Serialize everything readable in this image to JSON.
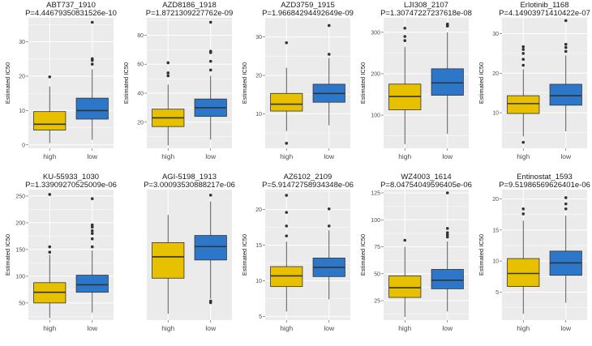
{
  "colors": {
    "high": "#E7C000",
    "low": "#2C77C9",
    "panel": "#EBEBEB",
    "grid": "#FFFFFF"
  },
  "chart_data": [
    {
      "type": "box",
      "title": "ABT737_1910",
      "subtitle": "P=4.44679350831526e-10",
      "ylabel": "Estimated IC50",
      "ylim": [
        -1,
        37
      ],
      "yticks": [
        0,
        10,
        20,
        30
      ],
      "ytick_labels": [
        "0",
        "10",
        "20",
        "30"
      ],
      "categories": [
        "high",
        "low"
      ],
      "boxes": [
        {
          "min": 0.5,
          "q1": 4.3,
          "median": 6,
          "q3": 9.7,
          "max": 17,
          "outliers": [
            19.8
          ]
        },
        {
          "min": 1.5,
          "q1": 7.5,
          "median": 10,
          "q3": 13.6,
          "max": 22,
          "outliers": [
            23.5,
            24.6,
            25.1,
            35.7
          ]
        }
      ]
    },
    {
      "type": "box",
      "title": "AZD8186_1918",
      "subtitle": "P=1.8721309227762e-09",
      "ylabel": "Estimated IC50",
      "ylim": [
        2,
        92
      ],
      "yticks": [
        20,
        40,
        60,
        80
      ],
      "ytick_labels": [
        "20",
        "40",
        "60",
        "80"
      ],
      "categories": [
        "high",
        "low"
      ],
      "boxes": [
        {
          "min": 4,
          "q1": 17,
          "median": 23,
          "q3": 29,
          "max": 46,
          "outliers": [
            52,
            54,
            61
          ]
        },
        {
          "min": 8,
          "q1": 24,
          "median": 30,
          "q3": 36,
          "max": 52,
          "outliers": [
            56,
            62,
            68,
            69,
            89
          ]
        }
      ]
    },
    {
      "type": "box",
      "title": "AZD3759_1915",
      "subtitle": "P=1.96684294492649e-09",
      "ylabel": "Estimated IC50",
      "ylim": [
        1,
        35
      ],
      "yticks": [
        10,
        20,
        30
      ],
      "ytick_labels": [
        "10",
        "20",
        "30"
      ],
      "categories": [
        "high",
        "low"
      ],
      "boxes": [
        {
          "min": 5.5,
          "q1": 10.7,
          "median": 12.5,
          "q3": 15.3,
          "max": 22,
          "outliers": [
            28.5,
            2.3
          ]
        },
        {
          "min": 7,
          "q1": 13,
          "median": 15.3,
          "q3": 17.7,
          "max": 24.5,
          "outliers": [
            25.5,
            33
          ]
        }
      ]
    },
    {
      "type": "box",
      "title": "LJI308_2107",
      "subtitle": "P=1.30747227237618e-08",
      "ylabel": "Estimated IC50",
      "ylim": [
        20,
        335
      ],
      "yticks": [
        100,
        200,
        300
      ],
      "ytick_labels": [
        "100",
        "200",
        "300"
      ],
      "categories": [
        "high",
        "low"
      ],
      "boxes": [
        {
          "min": 30,
          "q1": 113,
          "median": 145,
          "q3": 175,
          "max": 265,
          "outliers": [
            280,
            290,
            310
          ]
        },
        {
          "min": 55,
          "q1": 148,
          "median": 178,
          "q3": 212,
          "max": 300,
          "outliers": [
            315,
            318,
            320
          ]
        }
      ]
    },
    {
      "type": "box",
      "title": "Erlotinib_1168",
      "subtitle": "P=4.14903971410422e-07",
      "ylabel": "Estimated IC50",
      "ylim": [
        1,
        34
      ],
      "yticks": [
        10,
        20,
        30
      ],
      "ytick_labels": [
        "10",
        "20",
        "30"
      ],
      "categories": [
        "high",
        "low"
      ],
      "boxes": [
        {
          "min": 4,
          "q1": 9.8,
          "median": 12.3,
          "q3": 14.3,
          "max": 21,
          "outliers": [
            22,
            23.5,
            25,
            26,
            26.7,
            2.5
          ]
        },
        {
          "min": 5.3,
          "q1": 11.9,
          "median": 14.3,
          "q3": 17.2,
          "max": 24.5,
          "outliers": [
            25.5,
            26.5,
            27.3,
            33.3
          ]
        }
      ]
    },
    {
      "type": "box",
      "title": "KU-55933_1030",
      "subtitle": "P=1.33909270525009e-06",
      "ylabel": "Estimated IC50",
      "ylim": [
        18,
        262
      ],
      "yticks": [
        50,
        100,
        150,
        200,
        250
      ],
      "ytick_labels": [
        "50",
        "100",
        "150",
        "200",
        "250"
      ],
      "categories": [
        "high",
        "low"
      ],
      "boxes": [
        {
          "min": 22,
          "q1": 50,
          "median": 70,
          "q3": 88,
          "max": 140,
          "outliers": [
            145,
            155,
            253
          ]
        },
        {
          "min": 32,
          "q1": 70,
          "median": 84,
          "q3": 102,
          "max": 148,
          "outliers": [
            155,
            170,
            180,
            185,
            192,
            196,
            245
          ]
        }
      ]
    },
    {
      "type": "box",
      "title": "AGI-5198_1913",
      "subtitle": "P=3.00093530888217e-06",
      "ylabel": "",
      "ylim": [
        20,
        185
      ],
      "yticks": [],
      "ytick_labels": [],
      "categories": [
        "high",
        "low"
      ],
      "boxes": [
        {
          "min": 28,
          "q1": 73,
          "median": 100,
          "q3": 118,
          "max": 153,
          "outliers": []
        },
        {
          "min": 47,
          "q1": 96,
          "median": 113,
          "q3": 127,
          "max": 170,
          "outliers": [
            42,
            44,
            178
          ]
        }
      ]
    },
    {
      "type": "box",
      "title": "AZ6102_2109",
      "subtitle": "P=5.91472758934348e-06",
      "ylabel": "Estimated IC50",
      "ylim": [
        4.5,
        22.8
      ],
      "yticks": [
        5,
        10,
        15,
        20
      ],
      "ytick_labels": [
        "5",
        "10",
        "15",
        "20"
      ],
      "categories": [
        "high",
        "low"
      ],
      "boxes": [
        {
          "min": 5.7,
          "q1": 9.2,
          "median": 10.7,
          "q3": 12,
          "max": 15.5,
          "outliers": [
            16.3,
            17.7,
            19.6,
            22
          ]
        },
        {
          "min": 7.4,
          "q1": 10.6,
          "median": 11.9,
          "q3": 13.2,
          "max": 17.1,
          "outliers": [
            17.7,
            20.1
          ]
        }
      ]
    },
    {
      "type": "box",
      "title": "WZ4003_1614",
      "subtitle": "P=8.04754049596405e-06",
      "ylabel": "Estimated IC50",
      "ylim": [
        7,
        128
      ],
      "yticks": [
        25,
        50,
        75,
        100,
        125
      ],
      "ytick_labels": [
        "25",
        "50",
        "75",
        "100",
        "125"
      ],
      "categories": [
        "high",
        "low"
      ],
      "boxes": [
        {
          "min": 10,
          "q1": 28,
          "median": 37,
          "q3": 48,
          "max": 75,
          "outliers": [
            81
          ]
        },
        {
          "min": 15,
          "q1": 36,
          "median": 44,
          "q3": 54,
          "max": 80,
          "outliers": [
            84,
            86,
            88,
            92,
            125
          ]
        }
      ]
    },
    {
      "type": "box",
      "title": "Entinostat_1593",
      "subtitle": "P=9.51986569626401e-06",
      "ylabel": "Estimated IC50",
      "ylim": [
        0.5,
        21.5
      ],
      "yticks": [
        5,
        10,
        15,
        20
      ],
      "ytick_labels": [
        "5",
        "10",
        "15",
        "20"
      ],
      "categories": [
        "high",
        "low"
      ],
      "boxes": [
        {
          "min": 1.5,
          "q1": 5.9,
          "median": 8,
          "q3": 10.4,
          "max": 16.5,
          "outliers": [
            17.6,
            18.4
          ]
        },
        {
          "min": 3.3,
          "q1": 7.7,
          "median": 9.7,
          "q3": 11.6,
          "max": 17.3,
          "outliers": [
            18.4,
            19.2,
            20.2
          ]
        }
      ]
    }
  ]
}
